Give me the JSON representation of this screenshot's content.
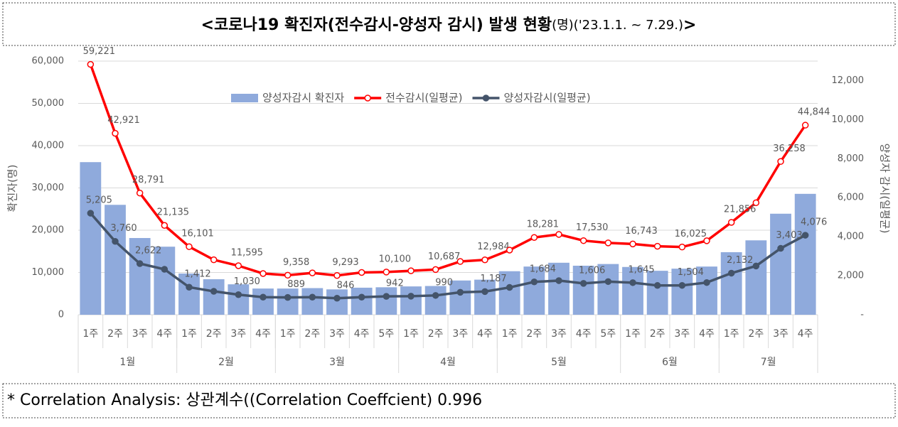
{
  "chart_data": {
    "type": "combo",
    "title": "<코로나19 확진자(전수감시-양성자 감시) 발생 현황",
    "subtitle": "(명)('23.1.1. ~ 7.29.)",
    "title_end": ">",
    "note": "* Correlation Analysis: 상관계수((Correlation Coeffcient) 0.996",
    "ylabel": "확진자(명)",
    "y2label": "양성자 감시(일평균)",
    "groups": [
      {
        "label": "1월",
        "categories": [
          "1주",
          "2주",
          "3주",
          "4주"
        ]
      },
      {
        "label": "2월",
        "categories": [
          "1주",
          "2주",
          "3주",
          "4주"
        ]
      },
      {
        "label": "3월",
        "categories": [
          "1주",
          "2주",
          "3주",
          "4주",
          "5주"
        ]
      },
      {
        "label": "4월",
        "categories": [
          "1주",
          "2주",
          "3주",
          "4주"
        ]
      },
      {
        "label": "5월",
        "categories": [
          "1주",
          "2주",
          "3주",
          "4주",
          "5주"
        ]
      },
      {
        "label": "6월",
        "categories": [
          "1주",
          "2주",
          "3주",
          "4주"
        ]
      },
      {
        "label": "7월",
        "categories": [
          "1주",
          "2주",
          "3주",
          "4주"
        ]
      }
    ],
    "ylim": [
      0,
      60000
    ],
    "yticks": [
      0,
      {
        "value": 10000,
        "label": "10,000"
      },
      {
        "value": 20000,
        "label": "20,000"
      },
      {
        "value": 30000,
        "label": "30,000"
      },
      {
        "value": 40000,
        "label": "40,000"
      },
      {
        "value": 50000,
        "label": "50,000"
      },
      {
        "value": 60000,
        "label": "60,000"
      }
    ],
    "y2lim": [
      0,
      13000
    ],
    "y2ticks": [
      {
        "value": 0,
        "label": "-"
      },
      {
        "value": 2000,
        "label": "2,000"
      },
      {
        "value": 4000,
        "label": "4,000"
      },
      {
        "value": 6000,
        "label": "6,000"
      },
      {
        "value": 8000,
        "label": "8,000"
      },
      {
        "value": 10000,
        "label": "10,000"
      },
      {
        "value": 12000,
        "label": "12,000"
      }
    ],
    "grid": true,
    "legend": "top",
    "series": [
      {
        "name": "양성자감시 확진자",
        "kind": "bar",
        "color": "#8faadc",
        "values": [
          36100,
          26000,
          18150,
          16100,
          9750,
          8400,
          7200,
          6200,
          6200,
          6300,
          6000,
          6400,
          6500,
          6700,
          6800,
          8100,
          8300,
          10300,
          11400,
          12300,
          11600,
          12000,
          11300,
          10400,
          10900,
          11400,
          14800,
          17600,
          23900,
          28600
        ]
      },
      {
        "name": "전수감시(일평균)",
        "kind": "line",
        "color": "#ff0000",
        "values": [
          59221,
          42921,
          28791,
          21135,
          16101,
          13000,
          11595,
          9750,
          9358,
          9900,
          9293,
          10000,
          10100,
          10400,
          10687,
          12600,
          12984,
          15300,
          18281,
          19000,
          17530,
          17000,
          16743,
          16200,
          16025,
          17500,
          21856,
          26500,
          36258,
          44844
        ],
        "value_labels": [
          "59,221",
          "42,921",
          "28,791",
          "21,135",
          "16,101",
          null,
          "11,595",
          null,
          "9,358",
          null,
          "9,293",
          null,
          "10,100",
          null,
          "10,687",
          null,
          "12,984",
          null,
          "18,281",
          null,
          "17,530",
          null,
          "16,743",
          null,
          "16,025",
          null,
          "21,856",
          null,
          "36,258",
          "44,844"
        ]
      },
      {
        "name": "양성자감시(일평균)",
        "kind": "line",
        "axis": "y2",
        "color": "#44546a",
        "values": [
          5205,
          3760,
          2622,
          2330,
          1412,
          1200,
          1030,
          900,
          889,
          900,
          846,
          900,
          942,
          950,
          990,
          1150,
          1187,
          1400,
          1684,
          1750,
          1606,
          1700,
          1645,
          1500,
          1504,
          1650,
          2132,
          2500,
          3403,
          4076
        ],
        "value_labels": [
          "5,205",
          "3,760",
          "2,622",
          null,
          "1,412",
          null,
          "1,030",
          null,
          "889",
          null,
          "846",
          null,
          "942",
          null,
          "990",
          null,
          "1,187",
          null,
          "1,684",
          null,
          "1,606",
          null,
          "1,645",
          null,
          "1,504",
          null,
          "2,132",
          null,
          "3,403",
          "4,076"
        ]
      }
    ]
  }
}
